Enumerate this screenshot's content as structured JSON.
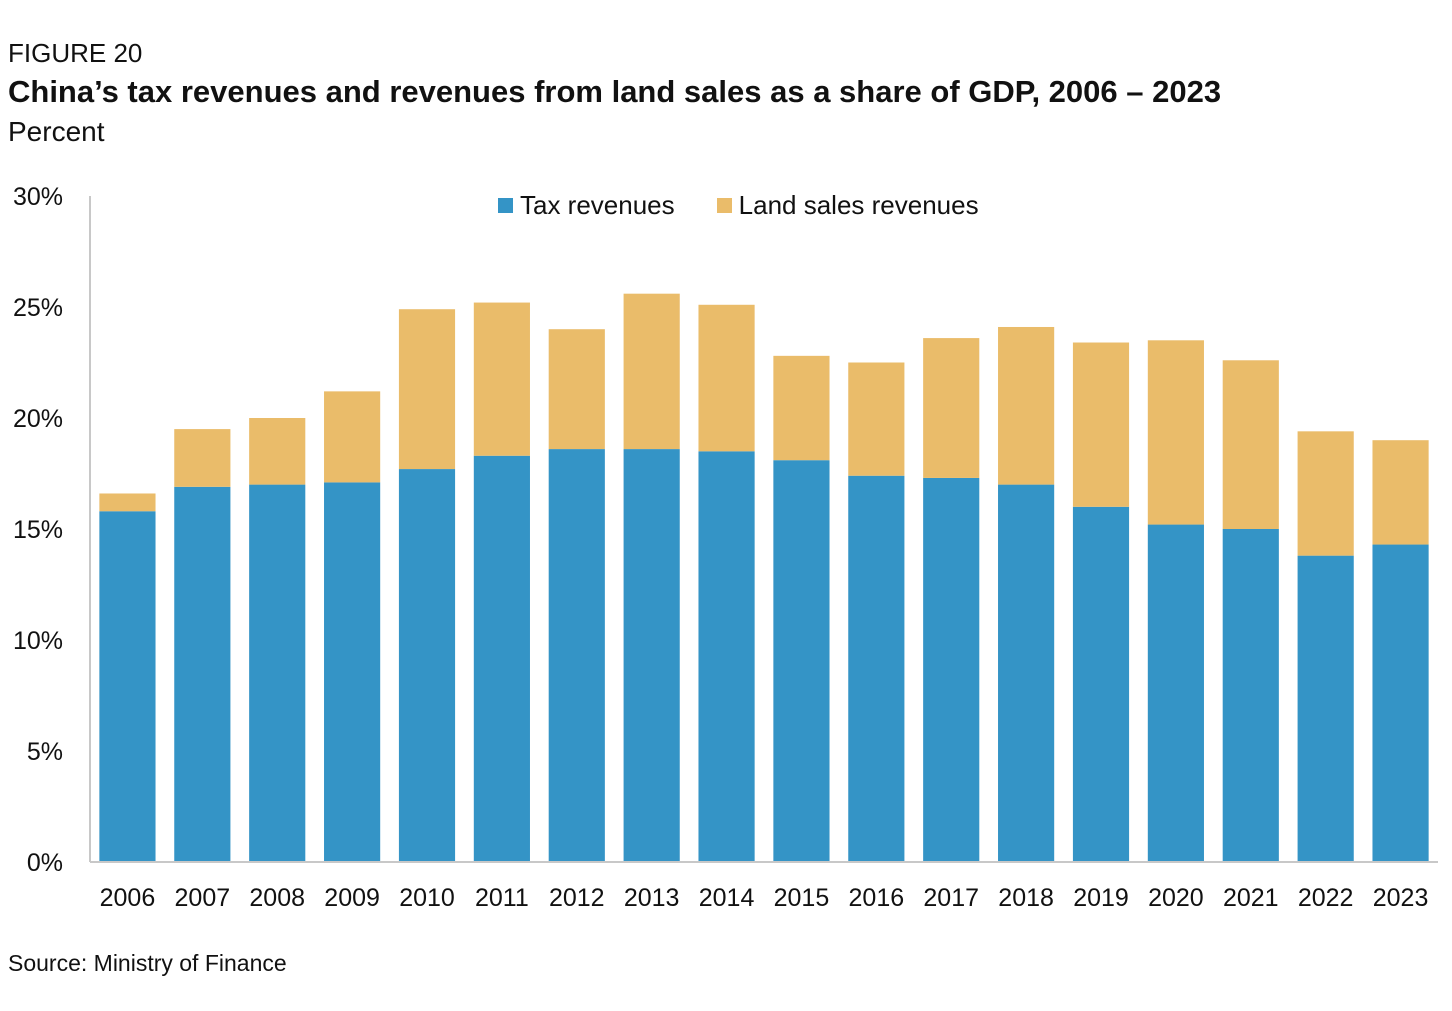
{
  "figure_label": "FIGURE 20",
  "title": "China’s tax revenues and revenues from land sales as a share of GDP, 2006 – 2023",
  "subtitle": "Percent",
  "source": "Source: Ministry of Finance",
  "colors": {
    "tax": "#3494c6",
    "land": "#eabc6a",
    "axis": "#c8c8c8"
  },
  "chart_data": {
    "type": "bar",
    "stacked": true,
    "categories": [
      "2006",
      "2007",
      "2008",
      "2009",
      "2010",
      "2011",
      "2012",
      "2013",
      "2014",
      "2015",
      "2016",
      "2017",
      "2018",
      "2019",
      "2020",
      "2021",
      "2022",
      "2023"
    ],
    "series": [
      {
        "name": "Tax revenues",
        "values": [
          15.8,
          16.9,
          17.0,
          17.1,
          17.7,
          18.3,
          18.6,
          18.6,
          18.5,
          18.1,
          17.4,
          17.3,
          17.0,
          16.0,
          15.2,
          15.0,
          13.8,
          14.3
        ]
      },
      {
        "name": "Land sales revenues",
        "values": [
          0.8,
          2.6,
          3.0,
          4.1,
          7.2,
          6.9,
          5.4,
          7.0,
          6.6,
          4.7,
          5.1,
          6.3,
          7.1,
          7.4,
          8.3,
          7.6,
          5.6,
          4.7
        ]
      }
    ],
    "yticks": [
      "0%",
      "5%",
      "10%",
      "15%",
      "20%",
      "25%",
      "30%"
    ],
    "ylim": [
      0,
      30
    ],
    "grid": false,
    "legend_position": "top-center"
  }
}
